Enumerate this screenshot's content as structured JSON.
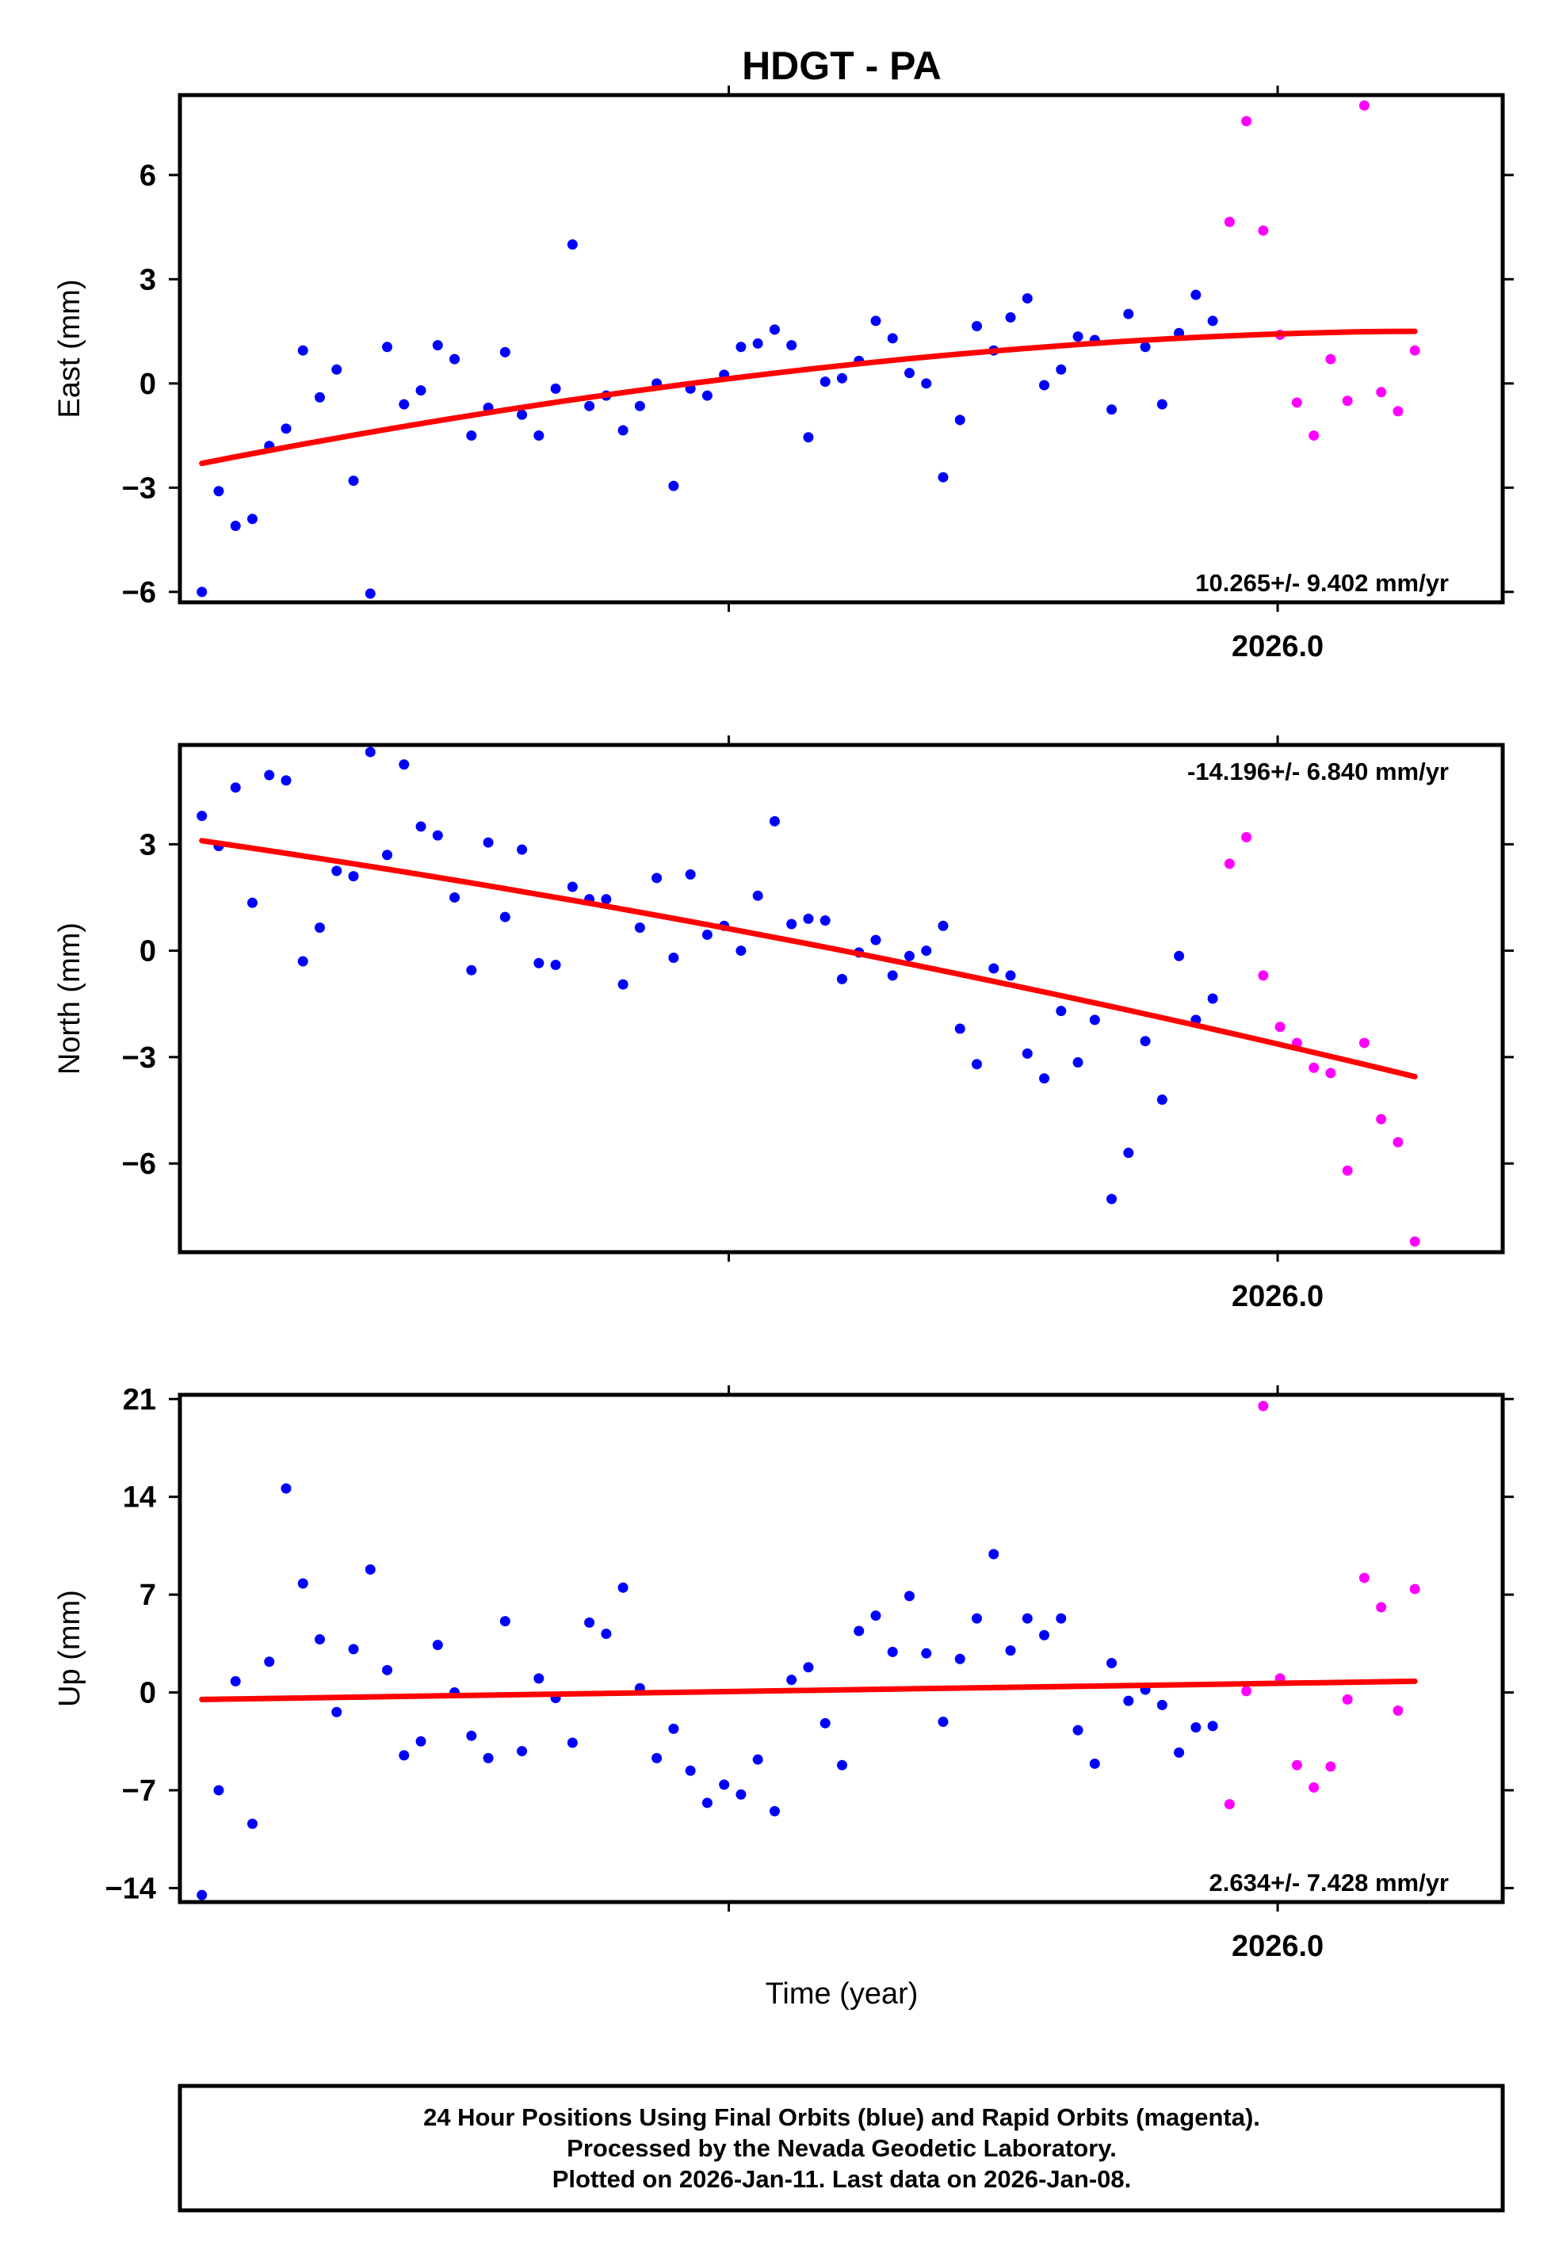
{
  "colors": {
    "final": "#0000ff",
    "rapid": "#ff00ff",
    "trend": "#ff0000",
    "axis": "#000000"
  },
  "title": "HDGT - PA",
  "xlabel": "Time (year)",
  "footer": {
    "line1": "24 Hour Positions Using Final Orbits (blue) and Rapid Orbits (magenta).",
    "line2": "Processed by the Nevada Geodetic Laboratory.",
    "line3": "Plotted on 2026-Jan-11. Last data on 2026-Jan-08."
  },
  "chart_data": [
    {
      "type": "scatter",
      "component": "east",
      "ylabel": "East (mm)",
      "rate": "10.265+/- 9.402 mm/yr",
      "rate_position": "bottom-right",
      "xlim": [
        2025.8,
        2026.041
      ],
      "x_tick_label": "2026.0",
      "x_ticks": [
        2025.9,
        2026.0
      ],
      "ylim": [
        -6.3,
        8.3
      ],
      "yticks": [
        -6,
        -3,
        0,
        3,
        6
      ],
      "ytick_labels": [
        "−6",
        "−3",
        "0",
        "3",
        "6"
      ],
      "trend": {
        "start": [
          2025.804,
          -2.3
        ],
        "end": [
          2026.025,
          1.5
        ],
        "shape": "curved"
      },
      "final": [
        -6.0,
        -3.1,
        -4.1,
        -3.9,
        -1.8,
        -1.3,
        0.95,
        -0.4,
        0.4,
        -2.8,
        -6.05,
        1.05,
        -0.6,
        -0.2,
        1.1,
        0.7,
        -1.5,
        -0.7,
        0.9,
        -0.9,
        -1.5,
        -0.15,
        4.0,
        -0.65,
        -0.35,
        -1.35,
        -0.65,
        0.0,
        -2.95,
        -0.15,
        -0.35,
        0.25,
        1.05,
        1.15,
        1.55,
        1.1,
        -1.55,
        0.05,
        0.15,
        0.65,
        1.8,
        1.3,
        0.3,
        0.0,
        -2.7,
        -1.05,
        1.65,
        0.95,
        1.9,
        2.45,
        -0.05,
        0.4,
        1.35,
        1.25,
        -0.75,
        2.0,
        1.05,
        -0.6,
        1.45,
        2.55,
        1.8
      ],
      "rapid": [
        4.65,
        7.55,
        4.4,
        1.4,
        -0.55,
        -1.5,
        0.7,
        -0.5,
        8.0,
        -0.25,
        -0.8,
        0.95
      ]
    },
    {
      "type": "scatter",
      "component": "north",
      "ylabel": "North (mm)",
      "rate": "-14.196+/- 6.840 mm/yr",
      "rate_position": "top-right",
      "xlim": [
        2025.8,
        2026.041
      ],
      "x_tick_label": "2026.0",
      "x_ticks": [
        2025.9,
        2026.0
      ],
      "ylim": [
        -8.5,
        5.8
      ],
      "yticks": [
        -6,
        -3,
        0,
        3
      ],
      "ytick_labels": [
        "−6",
        "−3",
        "0",
        "3"
      ],
      "trend": {
        "start": [
          2025.804,
          3.1
        ],
        "end": [
          2026.025,
          -3.55
        ],
        "shape": "curved"
      },
      "final": [
        3.8,
        2.95,
        4.6,
        1.35,
        4.95,
        4.8,
        -0.3,
        0.65,
        2.25,
        2.1,
        5.6,
        2.7,
        5.25,
        3.5,
        3.25,
        1.5,
        -0.55,
        3.05,
        0.95,
        2.85,
        -0.35,
        -0.4,
        1.8,
        1.45,
        1.45,
        -0.95,
        0.65,
        2.05,
        -0.2,
        2.15,
        0.45,
        0.7,
        0.0,
        1.55,
        3.65,
        0.75,
        0.9,
        0.85,
        -0.8,
        -0.05,
        0.3,
        -0.7,
        -0.15,
        0.0,
        0.7,
        -2.2,
        -3.2,
        -0.5,
        -0.7,
        -2.9,
        -3.6,
        -1.7,
        -3.15,
        -1.95,
        -7.0,
        -5.7,
        -2.55,
        -4.2,
        -0.15,
        -1.95,
        -1.35
      ],
      "rapid": [
        2.45,
        3.2,
        -0.7,
        -2.15,
        -2.6,
        -3.3,
        -3.45,
        -6.2,
        -2.6,
        -4.75,
        -5.4,
        -8.2
      ]
    },
    {
      "type": "scatter",
      "component": "up",
      "ylabel": "Up (mm)",
      "rate": "2.634+/- 7.428 mm/yr",
      "rate_position": "bottom-right",
      "xlim": [
        2025.8,
        2026.041
      ],
      "x_tick_label": "2026.0",
      "x_ticks": [
        2025.9,
        2026.0
      ],
      "ylim": [
        -15,
        21.3
      ],
      "yticks": [
        -14,
        -7,
        0,
        7,
        14,
        21
      ],
      "ytick_labels": [
        "−14",
        "−7",
        "0",
        "7",
        "14",
        "21"
      ],
      "trend": {
        "start": [
          2025.804,
          -0.5
        ],
        "end": [
          2026.025,
          0.8
        ],
        "shape": "linear"
      },
      "final": [
        -14.5,
        -7.0,
        0.8,
        -9.4,
        2.2,
        14.6,
        7.8,
        3.8,
        -1.4,
        3.1,
        8.8,
        1.6,
        -4.5,
        -3.5,
        3.4,
        0.0,
        -3.1,
        -4.7,
        5.1,
        -4.2,
        1.0,
        -0.4,
        -3.6,
        5.0,
        4.2,
        7.5,
        0.3,
        -4.7,
        -2.6,
        -5.6,
        -7.9,
        -6.6,
        -7.3,
        -4.8,
        -8.5,
        0.9,
        1.8,
        -2.2,
        -5.2,
        4.4,
        5.5,
        2.9,
        6.9,
        2.8,
        -2.1,
        2.4,
        5.3,
        9.9,
        3.0,
        5.3,
        4.1,
        5.3,
        -2.7,
        -5.1,
        2.1,
        -0.6,
        0.2,
        -0.9,
        -4.3,
        -2.5,
        -2.4
      ],
      "rapid": [
        -8.0,
        0.1,
        20.5,
        1.0,
        -5.2,
        -6.8,
        -5.3,
        -0.5,
        8.2,
        6.1,
        -1.3,
        7.4
      ]
    }
  ]
}
